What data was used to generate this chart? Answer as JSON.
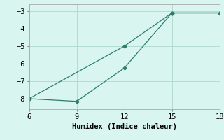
{
  "line1_x": [
    6,
    9,
    12,
    15,
    18
  ],
  "line1_y": [
    -8.0,
    -8.15,
    -6.25,
    -3.1,
    -3.1
  ],
  "line2_x": [
    6,
    12,
    15,
    18
  ],
  "line2_y": [
    -8.0,
    -5.0,
    -3.1,
    -3.1
  ],
  "line_color": "#2e7d6e",
  "marker": "D",
  "marker_size": 2.5,
  "background_color": "#d8f5f0",
  "grid_color": "#b0d8cc",
  "xlabel": "Humidex (Indice chaleur)",
  "xlim": [
    6,
    18
  ],
  "ylim": [
    -8.6,
    -2.6
  ],
  "xticks": [
    6,
    9,
    12,
    15,
    18
  ],
  "yticks": [
    -8,
    -7,
    -6,
    -5,
    -4,
    -3
  ],
  "xlabel_fontsize": 7.5,
  "tick_fontsize": 7.5,
  "linewidth": 0.9
}
